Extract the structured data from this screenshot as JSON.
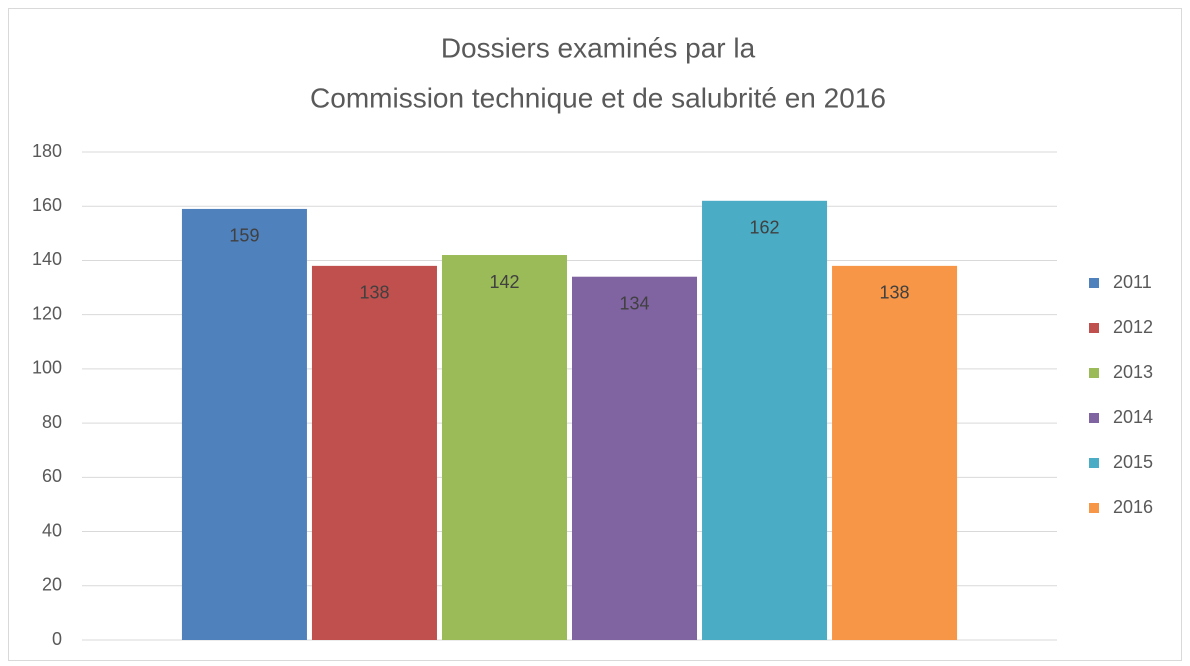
{
  "chart_data": {
    "type": "bar",
    "title": [
      "Dossiers examinés par la",
      "Commission technique et de salubrité en 2016"
    ],
    "categories": [
      null
    ],
    "series": [
      {
        "name": "2011",
        "color": "#4f81bd",
        "values": [
          159
        ]
      },
      {
        "name": "2012",
        "color": "#c0504d",
        "values": [
          138
        ]
      },
      {
        "name": "2013",
        "color": "#9bbb59",
        "values": [
          142
        ]
      },
      {
        "name": "2014",
        "color": "#8064a2",
        "values": [
          134
        ]
      },
      {
        "name": "2015",
        "color": "#4bacc6",
        "values": [
          162
        ]
      },
      {
        "name": "2016",
        "color": "#f79646",
        "values": [
          138
        ]
      }
    ],
    "ylim": [
      0,
      180
    ],
    "yticks": [
      0,
      20,
      40,
      60,
      80,
      100,
      120,
      140,
      160,
      180
    ],
    "grid": true,
    "legend": "right"
  }
}
